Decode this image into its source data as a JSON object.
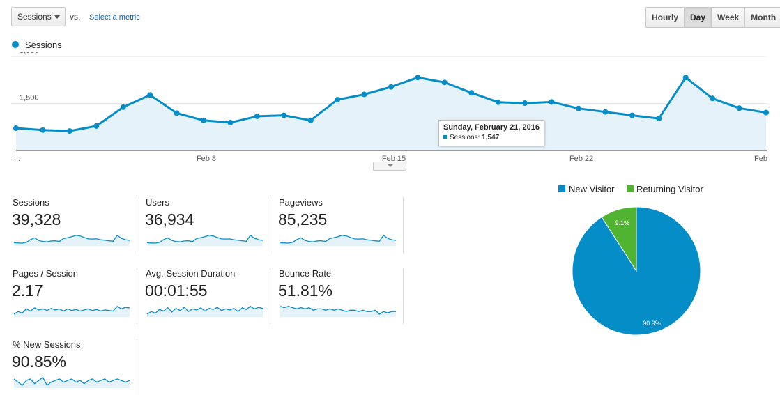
{
  "controls": {
    "metric_select": "Sessions",
    "vs": "vs.",
    "select_metric": "Select a metric",
    "granularity": [
      "Hourly",
      "Day",
      "Week",
      "Month"
    ],
    "active_granularity": "Day"
  },
  "chart_data": [
    {
      "type": "area",
      "series": [
        {
          "name": "Sessions",
          "color": "#058dc7",
          "values": [
            710,
            650,
            620,
            780,
            1380,
            1770,
            1190,
            960,
            890,
            1090,
            1120,
            960,
            1620,
            1790,
            2030,
            2330,
            2170,
            1840,
            1540,
            1510,
            1547,
            1340,
            1230,
            1120,
            1020,
            2330,
            1660,
            1350,
            1210
          ]
        }
      ],
      "x_tick_labels": [
        "...",
        "Feb 8",
        "Feb 15",
        "Feb 22",
        "Feb"
      ],
      "y_tick_labels": [
        "3,000",
        "1,500"
      ],
      "ylim": [
        0,
        3000
      ],
      "grid": true,
      "tooltip": {
        "title": "Sunday, February 21, 2016",
        "label": "Sessions:",
        "value": "1,547"
      }
    },
    {
      "type": "pie",
      "labels": [
        "New Visitor",
        "Returning Visitor"
      ],
      "values": [
        90.9,
        9.1
      ],
      "value_labels": [
        "90.9%",
        "9.1%"
      ],
      "colors": [
        "#058dc7",
        "#50b432"
      ],
      "legend": "top"
    }
  ],
  "metrics": [
    {
      "label": "Sessions",
      "value": "39,328",
      "spark": [
        710,
        650,
        620,
        780,
        1380,
        1770,
        1190,
        960,
        890,
        1090,
        1120,
        960,
        1620,
        1790,
        2030,
        2330,
        2170,
        1840,
        1540,
        1510,
        1547,
        1340,
        1230,
        1120,
        1020,
        2330,
        1660,
        1350,
        1210
      ]
    },
    {
      "label": "Users",
      "value": "36,934",
      "spark": [
        650,
        600,
        570,
        720,
        1280,
        1650,
        1100,
        890,
        820,
        1000,
        1040,
        880,
        1500,
        1660,
        1880,
        2160,
        2000,
        1700,
        1420,
        1400,
        1430,
        1240,
        1140,
        1040,
        950,
        2160,
        1540,
        1250,
        1120
      ]
    },
    {
      "label": "Pageviews",
      "value": "85,235",
      "spark": [
        1500,
        1420,
        1350,
        1700,
        3000,
        3850,
        2600,
        2100,
        1950,
        2380,
        2450,
        2100,
        3500,
        3900,
        4400,
        5050,
        4700,
        4000,
        3350,
        3280,
        3360,
        2900,
        2670,
        2430,
        2210,
        5050,
        3600,
        2930,
        2630
      ]
    },
    {
      "label": "Pages / Session",
      "value": "2.17",
      "spark": [
        2.1,
        2.15,
        2.12,
        2.2,
        2.16,
        2.22,
        2.18,
        2.2,
        2.17,
        2.21,
        2.18,
        2.2,
        2.16,
        2.2,
        2.17,
        2.19,
        2.16,
        2.18,
        2.2,
        2.17,
        2.19,
        2.16,
        2.18,
        2.17,
        2.16,
        2.25,
        2.2,
        2.23,
        2.22
      ]
    },
    {
      "label": "Avg. Session Duration",
      "value": "00:01:55",
      "spark": [
        100,
        110,
        104,
        118,
        112,
        125,
        108,
        122,
        114,
        126,
        110,
        120,
        116,
        124,
        112,
        122,
        118,
        126,
        114,
        120,
        116,
        122,
        110,
        124,
        118,
        130,
        120,
        126,
        122
      ]
    },
    {
      "label": "Bounce Rate",
      "value": "51.81%",
      "spark": [
        54,
        53,
        54,
        53,
        52,
        53,
        52,
        53,
        51,
        52,
        52,
        51,
        52,
        51,
        52,
        51,
        50,
        51,
        51,
        50,
        51,
        50,
        50,
        51,
        48,
        50,
        49,
        50,
        50
      ]
    },
    {
      "label": "% New Sessions",
      "value": "90.85%",
      "spark": [
        91,
        90.8,
        90.6,
        90.9,
        91,
        90.7,
        90.9,
        91.1,
        90.6,
        90.8,
        90.9,
        91,
        90.8,
        90.9,
        91,
        90.8,
        90.9,
        90.7,
        90.9,
        91,
        90.8,
        90.9,
        91,
        90.8,
        90.9,
        91,
        90.9,
        90.8,
        90.9
      ]
    }
  ]
}
